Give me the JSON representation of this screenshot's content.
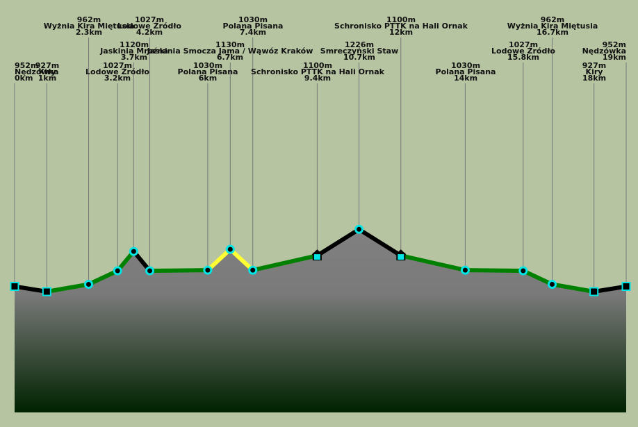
{
  "chart_data": {
    "type": "area",
    "title": "",
    "xlabel": "",
    "ylabel": "",
    "x_unit": "km",
    "y_unit": "m",
    "xlim": [
      0,
      19
    ],
    "ylim": [
      700,
      1260
    ],
    "colors": {
      "background": "#b6c4a2",
      "fill_top": "#808080",
      "fill_bottom": "#002200",
      "segment_green": "#008000",
      "segment_yellow": "#ffff33",
      "segment_black": "#000000",
      "marker": "#00e5e5",
      "guide_line": "#777777"
    },
    "points": [
      {
        "x": 0,
        "y": 952,
        "name": "Nędzówka",
        "elev_label": "952m",
        "dist_label": "0km",
        "marker": "square"
      },
      {
        "x": 1,
        "y": 927,
        "name": "Kiry",
        "elev_label": "927m",
        "dist_label": "1km",
        "marker": "square"
      },
      {
        "x": 2.3,
        "y": 962,
        "name": "Wyżnia Kira Miętusia",
        "elev_label": "962m",
        "dist_label": "2.3km",
        "marker": "circle"
      },
      {
        "x": 3.2,
        "y": 1027,
        "name": "Lodowe Źródło",
        "elev_label": "1027m",
        "dist_label": "3.2km",
        "marker": "circle"
      },
      {
        "x": 3.7,
        "y": 1120,
        "name": "Jaskinia Mroźna",
        "elev_label": "1120m",
        "dist_label": "3.7km",
        "marker": "circle"
      },
      {
        "x": 4.2,
        "y": 1027,
        "name": "Lodowe Źródło",
        "elev_label": "1027m",
        "dist_label": "4.2km",
        "marker": "circle"
      },
      {
        "x": 6,
        "y": 1030,
        "name": "Polana Pisana",
        "elev_label": "1030m",
        "dist_label": "6km",
        "marker": "circle"
      },
      {
        "x": 6.7,
        "y": 1130,
        "name": "Jaskinia Smocza Jama / Wąwóz Kraków",
        "elev_label": "1130m",
        "dist_label": "6.7km",
        "marker": "circle"
      },
      {
        "x": 7.4,
        "y": 1030,
        "name": "Polana Pisana",
        "elev_label": "1030m",
        "dist_label": "7.4km",
        "marker": "circle"
      },
      {
        "x": 9.4,
        "y": 1100,
        "name": "Schronisko PTTK na Hali Ornak",
        "elev_label": "1100m",
        "dist_label": "9.4km",
        "marker": "hut"
      },
      {
        "x": 10.7,
        "y": 1226,
        "name": "Smreczyński Staw",
        "elev_label": "1226m",
        "dist_label": "10.7km",
        "marker": "circle"
      },
      {
        "x": 12,
        "y": 1100,
        "name": "Schronisko PTTK na Hali Ornak",
        "elev_label": "1100m",
        "dist_label": "12km",
        "marker": "hut"
      },
      {
        "x": 14,
        "y": 1030,
        "name": "Polana Pisana",
        "elev_label": "1030m",
        "dist_label": "14km",
        "marker": "circle"
      },
      {
        "x": 15.8,
        "y": 1027,
        "name": "Lodowe Źródło",
        "elev_label": "1027m",
        "dist_label": "15.8km",
        "marker": "circle"
      },
      {
        "x": 16.7,
        "y": 962,
        "name": "Wyżnia Kira Miętusia",
        "elev_label": "962m",
        "dist_label": "16.7km",
        "marker": "circle"
      },
      {
        "x": 18,
        "y": 927,
        "name": "Kiry",
        "elev_label": "927m",
        "dist_label": "18km",
        "marker": "square"
      },
      {
        "x": 19,
        "y": 952,
        "name": "Nędzówka",
        "elev_label": "952m",
        "dist_label": "19km",
        "marker": "square"
      }
    ],
    "segments": [
      {
        "from": 0,
        "to": 1,
        "color": "black"
      },
      {
        "from": 1,
        "to": 2,
        "color": "green"
      },
      {
        "from": 2,
        "to": 3,
        "color": "green"
      },
      {
        "from": 3,
        "to": 4,
        "color": "green"
      },
      {
        "from": 4,
        "to": 5,
        "color": "black"
      },
      {
        "from": 5,
        "to": 6,
        "color": "green"
      },
      {
        "from": 6,
        "to": 7,
        "color": "yellow"
      },
      {
        "from": 7,
        "to": 8,
        "color": "yellow"
      },
      {
        "from": 8,
        "to": 9,
        "color": "green"
      },
      {
        "from": 9,
        "to": 10,
        "color": "black"
      },
      {
        "from": 10,
        "to": 11,
        "color": "black"
      },
      {
        "from": 11,
        "to": 12,
        "color": "green"
      },
      {
        "from": 12,
        "to": 13,
        "color": "green"
      },
      {
        "from": 13,
        "to": 14,
        "color": "green"
      },
      {
        "from": 14,
        "to": 15,
        "color": "green"
      },
      {
        "from": 15,
        "to": 16,
        "color": "black"
      }
    ]
  }
}
